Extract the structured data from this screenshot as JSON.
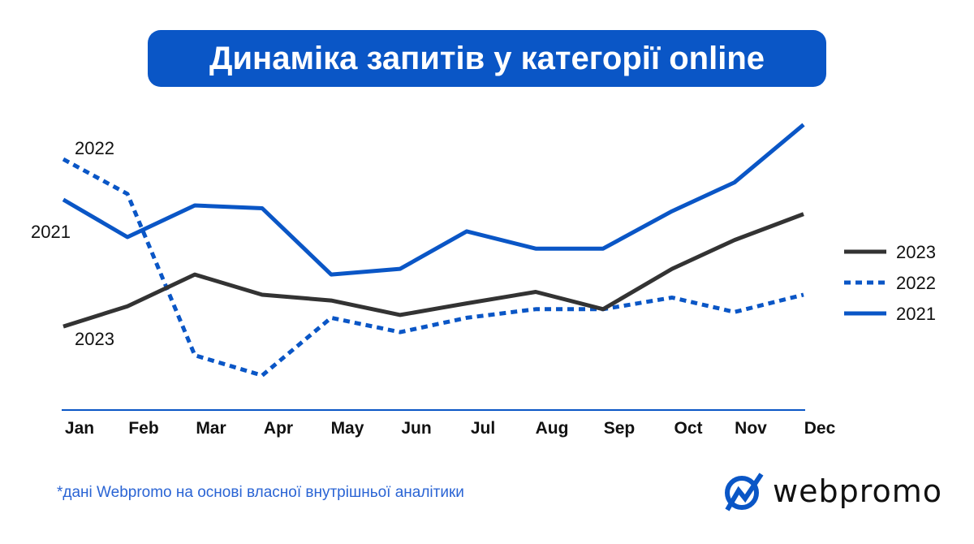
{
  "chart_data": {
    "type": "line",
    "title": "Динаміка запитів у категорії online",
    "categories": [
      "Jan",
      "Feb",
      "Mar",
      "Apr",
      "May",
      "Jun",
      "Jul",
      "Aug",
      "Sep",
      "Oct",
      "Nov",
      "Dec"
    ],
    "ylim": [
      0,
      100
    ],
    "grid": false,
    "legend_position": "right",
    "series": [
      {
        "name": "2023",
        "color": "#333333",
        "style": "solid",
        "values": [
          29,
          36,
          47,
          40,
          38,
          33,
          37,
          41,
          35,
          49,
          59,
          68
        ]
      },
      {
        "name": "2022",
        "color": "#0a56c6",
        "style": "dotted",
        "values": [
          87,
          75,
          19,
          12,
          32,
          27,
          32,
          35,
          35,
          39,
          34,
          40
        ]
      },
      {
        "name": "2021",
        "color": "#0a56c6",
        "style": "solid",
        "values": [
          73,
          60,
          71,
          70,
          47,
          49,
          62,
          56,
          56,
          69,
          79,
          99
        ]
      }
    ],
    "inline_labels": [
      "2022",
      "2021",
      "2023"
    ]
  },
  "footnote": "*дані Webpromo на основі власної внутрішньої аналітики",
  "logo": {
    "text": "webpromo",
    "color": "#0a56c6"
  }
}
